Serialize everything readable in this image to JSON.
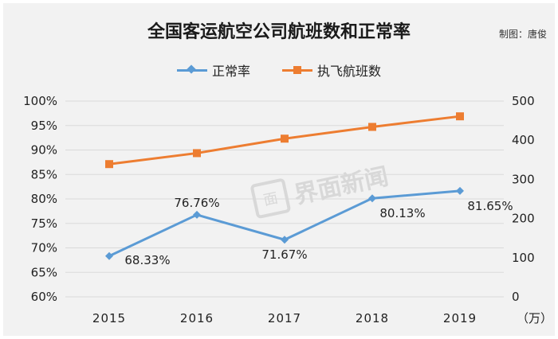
{
  "title": "全国客运航空公司航班数和正常率",
  "credit": "制图：唐俊",
  "watermark": {
    "text": "界面新闻",
    "logo": "面"
  },
  "colors": {
    "on_time": "#5b9bd5",
    "flights": "#ed7d31",
    "grid": "#d9d9d9"
  },
  "chart_data": {
    "type": "line",
    "categories": [
      "2015",
      "2016",
      "2017",
      "2018",
      "2019"
    ],
    "series": [
      {
        "name": "正常率",
        "axis": "left",
        "marker": "diamond",
        "values": [
          68.33,
          76.76,
          71.67,
          80.13,
          81.65
        ],
        "labels": [
          "68.33%",
          "76.76%",
          "71.67%",
          "80.13%",
          "81.65%"
        ]
      },
      {
        "name": "执飞航班数",
        "axis": "right",
        "marker": "square",
        "values": [
          339,
          367,
          404,
          434,
          461
        ]
      }
    ],
    "y_left": {
      "range": [
        60,
        100
      ],
      "ticks": [
        "60%",
        "65%",
        "70%",
        "75%",
        "80%",
        "85%",
        "90%",
        "95%",
        "100%"
      ]
    },
    "y_right": {
      "range": [
        0,
        500
      ],
      "ticks": [
        "0",
        "100",
        "200",
        "300",
        "400",
        "500"
      ],
      "unit": "（万）"
    },
    "grid": true,
    "legend": "top-center"
  }
}
